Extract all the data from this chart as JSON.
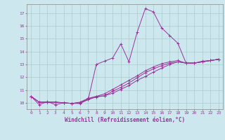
{
  "xlabel": "Windchill (Refroidissement éolien,°C)",
  "bg_color": "#cce8ee",
  "grid_color": "#aacccc",
  "line_color": "#993399",
  "xlim": [
    -0.5,
    23.5
  ],
  "ylim": [
    9.5,
    17.7
  ],
  "xticks": [
    0,
    1,
    2,
    3,
    4,
    5,
    6,
    7,
    8,
    9,
    10,
    11,
    12,
    13,
    14,
    15,
    16,
    17,
    18,
    19,
    20,
    21,
    22,
    23
  ],
  "yticks": [
    10,
    11,
    12,
    13,
    14,
    15,
    16,
    17
  ],
  "series": [
    [
      10.5,
      9.85,
      10.1,
      9.85,
      10.0,
      9.95,
      9.95,
      10.25,
      13.0,
      13.25,
      13.5,
      14.6,
      13.2,
      15.5,
      17.35,
      17.1,
      15.85,
      15.25,
      14.65,
      13.1,
      13.1,
      13.25,
      13.3,
      13.4
    ],
    [
      10.5,
      10.05,
      10.05,
      10.05,
      10.0,
      9.95,
      10.05,
      10.35,
      10.5,
      10.55,
      10.75,
      11.05,
      11.35,
      11.75,
      12.05,
      12.4,
      12.7,
      13.0,
      13.2,
      13.1,
      13.1,
      13.2,
      13.3,
      13.4
    ],
    [
      10.5,
      10.05,
      10.05,
      10.05,
      10.0,
      9.95,
      10.0,
      10.25,
      10.45,
      10.55,
      10.9,
      11.2,
      11.55,
      11.95,
      12.35,
      12.65,
      12.9,
      13.1,
      13.2,
      13.1,
      13.1,
      13.2,
      13.3,
      13.4
    ],
    [
      10.5,
      10.05,
      10.05,
      10.05,
      10.0,
      9.95,
      10.0,
      10.3,
      10.5,
      10.7,
      11.05,
      11.4,
      11.75,
      12.1,
      12.5,
      12.8,
      13.05,
      13.2,
      13.3,
      13.1,
      13.1,
      13.2,
      13.3,
      13.4
    ]
  ]
}
